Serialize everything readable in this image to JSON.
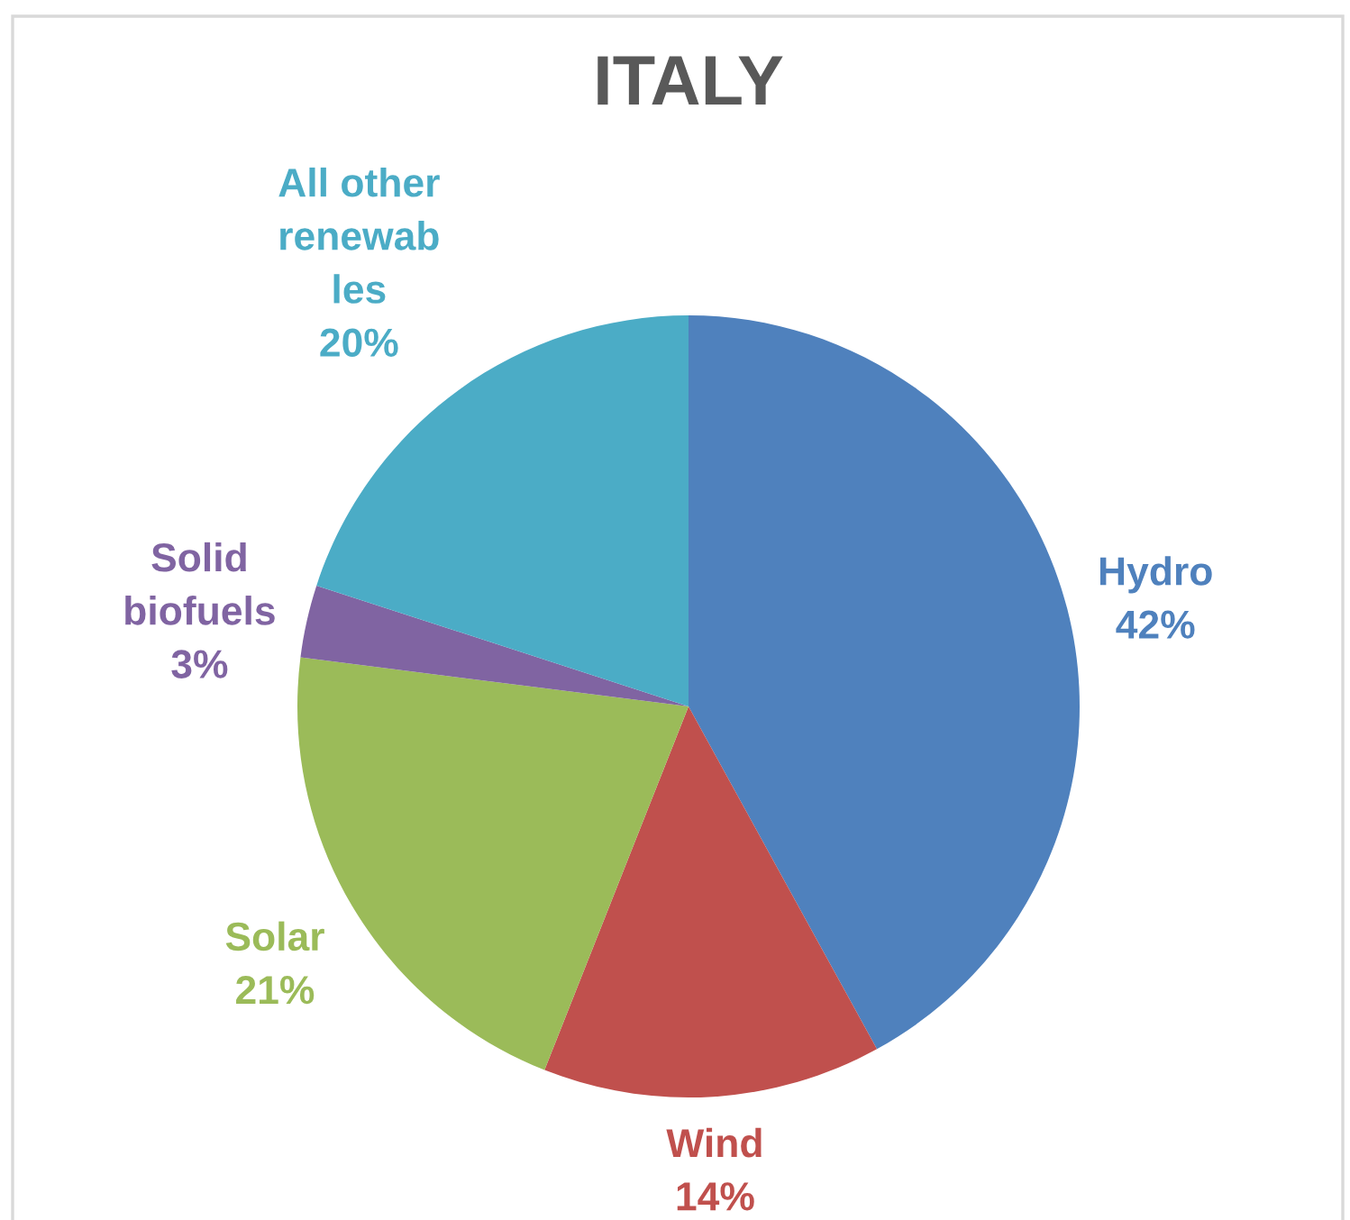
{
  "chart_data": {
    "type": "pie",
    "title": "ITALY",
    "categories": [
      "Hydro",
      "Wind",
      "Solar",
      "Solid\nbiofuels",
      "All other\nrenewab\nles"
    ],
    "values": [
      42,
      14,
      21,
      3,
      20
    ],
    "colors": [
      "#4f81bd",
      "#c0504d",
      "#9bbb59",
      "#8064a2",
      "#4bacc6"
    ],
    "value_labels": [
      "42%",
      "14%",
      "21%",
      "3%",
      "20%"
    ]
  }
}
